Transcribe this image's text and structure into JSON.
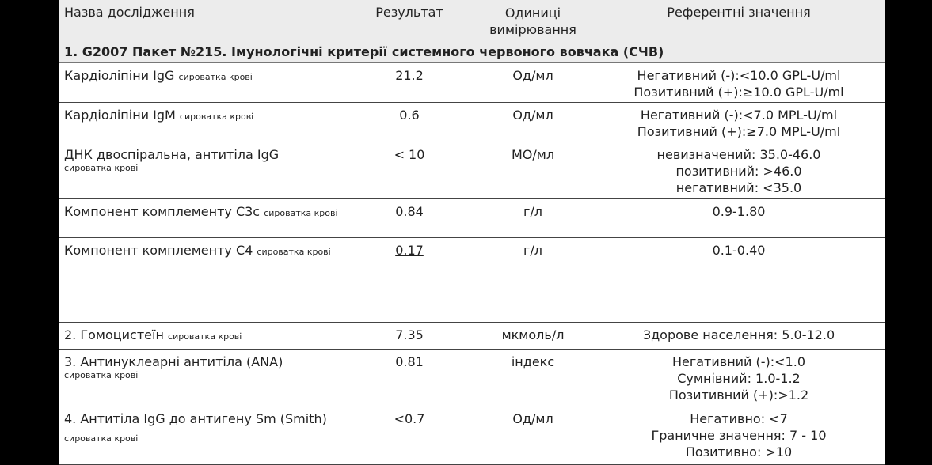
{
  "table": {
    "header": [
      "Назва дослідження",
      "Результат",
      "Одиниці вимірювання",
      "Референтні значення"
    ],
    "section": "1. G2007 Пакет №215. Імунологічні критерії системного червоного вовчака (СЧВ)",
    "rows": [
      {
        "name": "Кардіоліпіни IgG",
        "specimen": "сироватка крові",
        "result": "21.2",
        "units": "Од/мл",
        "reference": [
          "Негативний (-):<10.0 GPL-U/ml",
          "Позитивний (+):≥10.0 GPL-U/ml"
        ]
      },
      {
        "name": "Кардіоліпіни IgM",
        "specimen": "сироватка крові",
        "result": "0.6",
        "units": "Од/мл",
        "reference": [
          "Негативний (-):<7.0 MPL-U/ml",
          "Позитивний (+):≥7.0 MPL-U/ml"
        ]
      },
      {
        "name": "ДНК двоспіральна, антитіла IgG",
        "specimen": "сироватка крові",
        "result": "< 10",
        "units": "МО/мл",
        "reference": [
          "невизначений: 35.0-46.0",
          "позитивний: >46.0",
          "негативний: <35.0"
        ]
      },
      {
        "name": "Компонент комплементу C3c",
        "specimen": "сироватка крові",
        "result": "0.84",
        "units": "г/л",
        "reference": [
          "0.9-1.80"
        ]
      },
      {
        "name": "Компонент комплементу C4",
        "specimen": "сироватка крові",
        "result": "0.17",
        "units": "г/л",
        "reference": [
          "0.1-0.40"
        ]
      },
      {
        "name": "2. Гомоцистеїн",
        "specimen": "сироватка крові",
        "result": "7.35",
        "units": "мкмоль/л",
        "reference": [
          "Здорове населення: 5.0-12.0"
        ]
      },
      {
        "name": "3. Антинуклеарні антитіла (ANA)",
        "specimen": "сироватка крові",
        "result": "0.81",
        "units": "індекс",
        "reference": [
          "Негативний (-):<1.0",
          "Сумнівний: 1.0-1.2",
          "Позитивний (+):>1.2"
        ]
      },
      {
        "name": "4. Антитіла IgG до антигену Sm (Smith)",
        "specimen": "сироватка крові",
        "result": "<0.7",
        "units": "Од/мл",
        "reference": [
          "Негативно: <7",
          "Граничне значення: 7 - 10",
          "Позитивно: >10"
        ]
      }
    ]
  }
}
